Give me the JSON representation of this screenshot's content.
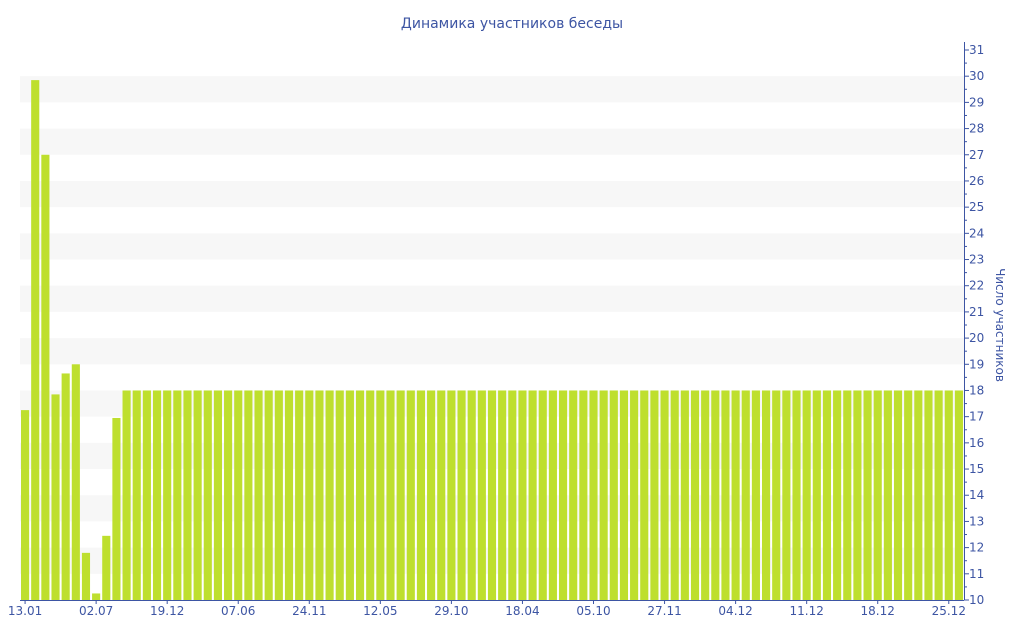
{
  "chart_data": {
    "type": "bar",
    "title": "Динамика участников беседы",
    "xlabel": "",
    "ylabel": "Число участников",
    "ylim": [
      10,
      31
    ],
    "y_axis_position": "right",
    "grid": "alternating horizontal bands",
    "legend": "none",
    "colors": {
      "bar": "#bedf2e",
      "text": "#3d55a3",
      "axis": "#3d55a3",
      "band": "#f7f7f7"
    },
    "x_tick_labels": [
      "13.01",
      "02.07",
      "19.12",
      "07.06",
      "24.11",
      "12.05",
      "29.10",
      "18.04",
      "05.10",
      "27.11",
      "04.12",
      "11.12",
      "18.12",
      "25.12"
    ],
    "x_tick_every": 7,
    "y_ticks": [
      10,
      11,
      12,
      13,
      14,
      15,
      16,
      17,
      18,
      19,
      20,
      21,
      22,
      23,
      24,
      25,
      26,
      27,
      28,
      29,
      30,
      31
    ],
    "values": [
      17.25,
      29.85,
      27,
      17.85,
      18.65,
      19,
      11.8,
      10.25,
      12.45,
      16.95,
      18,
      18,
      18,
      18,
      18,
      18,
      18,
      18,
      18,
      18,
      18,
      18,
      18,
      18,
      18,
      18,
      18,
      18,
      18,
      18,
      18,
      18,
      18,
      18,
      18,
      18,
      18,
      18,
      18,
      18,
      18,
      18,
      18,
      18,
      18,
      18,
      18,
      18,
      18,
      18,
      18,
      18,
      18,
      18,
      18,
      18,
      18,
      18,
      18,
      18,
      18,
      18,
      18,
      18,
      18,
      18,
      18,
      18,
      18,
      18,
      18,
      18,
      18,
      18,
      18,
      18,
      18,
      18,
      18,
      18,
      18,
      18,
      18,
      18,
      18,
      18,
      18,
      18,
      18,
      18,
      18,
      18,
      18
    ]
  }
}
